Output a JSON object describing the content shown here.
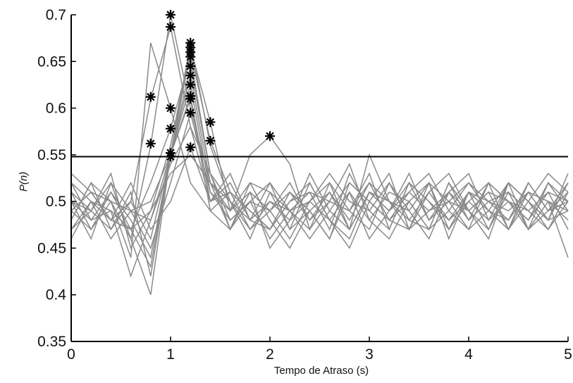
{
  "chart_data": {
    "type": "line",
    "xlabel": "Tempo de Atraso (s)",
    "ylabel": "P(n)",
    "xlim": [
      0,
      5
    ],
    "ylim": [
      0.35,
      0.7
    ],
    "x_ticks": [
      "0",
      "1",
      "2",
      "3",
      "4",
      "5"
    ],
    "y_ticks": [
      "0.35",
      "0.4",
      "0.45",
      "0.5",
      "0.55",
      "0.6",
      "0.65",
      "0.7"
    ],
    "grid": false,
    "threshold": 0.548,
    "colors": {
      "series": "#8a8a8a",
      "threshold": "#000000",
      "marker": "#000000",
      "axis": "#000000"
    },
    "x": [
      0,
      0.2,
      0.4,
      0.6,
      0.8,
      1.0,
      1.2,
      1.4,
      1.6,
      1.8,
      2.0,
      2.2,
      2.4,
      2.6,
      2.8,
      3.0,
      3.2,
      3.4,
      3.6,
      3.8,
      4.0,
      4.2,
      4.4,
      4.6,
      4.8,
      5.0
    ],
    "series": [
      {
        "values": [
          0.5,
          0.49,
          0.52,
          0.46,
          0.56,
          0.7,
          0.6,
          0.52,
          0.47,
          0.51,
          0.49,
          0.46,
          0.5,
          0.52,
          0.47,
          0.51,
          0.49,
          0.53,
          0.48,
          0.5,
          0.52,
          0.49,
          0.47,
          0.51,
          0.5,
          0.49
        ]
      },
      {
        "values": [
          0.48,
          0.52,
          0.47,
          0.5,
          0.61,
          0.687,
          0.58,
          0.5,
          0.53,
          0.48,
          0.47,
          0.51,
          0.49,
          0.46,
          0.52,
          0.5,
          0.48,
          0.51,
          0.53,
          0.49,
          0.47,
          0.52,
          0.5,
          0.48,
          0.51,
          0.5
        ]
      },
      {
        "values": [
          0.51,
          0.47,
          0.5,
          0.44,
          0.67,
          0.6,
          0.52,
          0.49,
          0.51,
          0.47,
          0.5,
          0.48,
          0.53,
          0.49,
          0.47,
          0.55,
          0.5,
          0.47,
          0.52,
          0.5,
          0.49,
          0.46,
          0.52,
          0.5,
          0.48,
          0.53
        ]
      },
      {
        "values": [
          0.49,
          0.51,
          0.48,
          0.47,
          0.52,
          0.578,
          0.655,
          0.53,
          0.48,
          0.5,
          0.46,
          0.49,
          0.51,
          0.5,
          0.54,
          0.48,
          0.46,
          0.5,
          0.52,
          0.47,
          0.51,
          0.5,
          0.48,
          0.52,
          0.49,
          0.51
        ]
      },
      {
        "values": [
          0.52,
          0.5,
          0.46,
          0.49,
          0.5,
          0.55,
          0.67,
          0.56,
          0.5,
          0.46,
          0.51,
          0.49,
          0.47,
          0.52,
          0.49,
          0.47,
          0.52,
          0.49,
          0.46,
          0.51,
          0.53,
          0.48,
          0.5,
          0.47,
          0.52,
          0.49
        ]
      },
      {
        "values": [
          0.47,
          0.49,
          0.53,
          0.45,
          0.49,
          0.56,
          0.665,
          0.585,
          0.49,
          0.52,
          0.48,
          0.45,
          0.49,
          0.51,
          0.48,
          0.52,
          0.5,
          0.48,
          0.51,
          0.53,
          0.49,
          0.51,
          0.47,
          0.5,
          0.53,
          0.51
        ]
      },
      {
        "values": [
          0.5,
          0.48,
          0.49,
          0.42,
          0.48,
          0.55,
          0.66,
          0.565,
          0.51,
          0.49,
          0.47,
          0.5,
          0.52,
          0.48,
          0.45,
          0.5,
          0.53,
          0.47,
          0.49,
          0.51,
          0.48,
          0.52,
          0.5,
          0.49,
          0.47,
          0.5
        ]
      },
      {
        "values": [
          0.53,
          0.51,
          0.48,
          0.5,
          0.46,
          0.55,
          0.645,
          0.53,
          0.47,
          0.5,
          0.52,
          0.47,
          0.49,
          0.46,
          0.51,
          0.48,
          0.51,
          0.5,
          0.47,
          0.49,
          0.52,
          0.5,
          0.49,
          0.51,
          0.48,
          0.52
        ]
      },
      {
        "values": [
          0.49,
          0.47,
          0.51,
          0.48,
          0.44,
          0.55,
          0.635,
          0.52,
          0.5,
          0.47,
          0.49,
          0.52,
          0.48,
          0.5,
          0.49,
          0.53,
          0.47,
          0.52,
          0.5,
          0.47,
          0.5,
          0.48,
          0.52,
          0.47,
          0.5,
          0.48
        ]
      },
      {
        "values": [
          0.46,
          0.5,
          0.49,
          0.47,
          0.43,
          0.55,
          0.625,
          0.51,
          0.49,
          0.51,
          0.45,
          0.48,
          0.5,
          0.53,
          0.5,
          0.49,
          0.52,
          0.48,
          0.47,
          0.52,
          0.49,
          0.47,
          0.51,
          0.49,
          0.51,
          0.47
        ]
      },
      {
        "values": [
          0.51,
          0.49,
          0.47,
          0.51,
          0.42,
          0.55,
          0.613,
          0.5,
          0.52,
          0.48,
          0.5,
          0.49,
          0.46,
          0.49,
          0.52,
          0.5,
          0.48,
          0.47,
          0.51,
          0.48,
          0.5,
          0.52,
          0.47,
          0.52,
          0.49,
          0.5
        ]
      },
      {
        "values": [
          0.48,
          0.52,
          0.5,
          0.46,
          0.4,
          0.55,
          0.61,
          0.49,
          0.47,
          0.52,
          0.51,
          0.47,
          0.52,
          0.48,
          0.51,
          0.46,
          0.49,
          0.51,
          0.49,
          0.5,
          0.47,
          0.49,
          0.52,
          0.5,
          0.47,
          0.51
        ]
      },
      {
        "values": [
          0.5,
          0.46,
          0.52,
          0.49,
          0.45,
          0.52,
          0.595,
          0.51,
          0.48,
          0.5,
          0.49,
          0.51,
          0.48,
          0.51,
          0.47,
          0.51,
          0.5,
          0.49,
          0.52,
          0.46,
          0.51,
          0.49,
          0.48,
          0.51,
          0.5,
          0.44
        ]
      },
      {
        "values": [
          0.47,
          0.5,
          0.48,
          0.52,
          0.47,
          0.5,
          0.558,
          0.5,
          0.51,
          0.49,
          0.47,
          0.5,
          0.51,
          0.47,
          0.53,
          0.49,
          0.47,
          0.52,
          0.48,
          0.51,
          0.49,
          0.51,
          0.5,
          0.48,
          0.52,
          0.5
        ]
      },
      {
        "values": [
          0.52,
          0.48,
          0.51,
          0.47,
          0.49,
          0.53,
          0.55,
          0.52,
          0.49,
          0.55,
          0.57,
          0.54,
          0.47,
          0.5,
          0.49,
          0.52,
          0.48,
          0.5,
          0.47,
          0.52,
          0.48,
          0.5,
          0.51,
          0.47,
          0.49,
          0.52
        ]
      },
      {
        "values": [
          0.49,
          0.51,
          0.5,
          0.49,
          0.48,
          0.54,
          0.58,
          0.53,
          0.5,
          0.48,
          0.52,
          0.49,
          0.5,
          0.48,
          0.46,
          0.51,
          0.49,
          0.52,
          0.5,
          0.48,
          0.51,
          0.47,
          0.52,
          0.5,
          0.48,
          0.49
        ]
      }
    ],
    "markers": [
      {
        "x": 0.8,
        "y": 0.612
      },
      {
        "x": 0.8,
        "y": 0.562
      },
      {
        "x": 1.0,
        "y": 0.7
      },
      {
        "x": 1.0,
        "y": 0.687
      },
      {
        "x": 1.0,
        "y": 0.6
      },
      {
        "x": 1.0,
        "y": 0.578
      },
      {
        "x": 1.0,
        "y": 0.552
      },
      {
        "x": 1.0,
        "y": 0.548
      },
      {
        "x": 1.2,
        "y": 0.67
      },
      {
        "x": 1.2,
        "y": 0.665
      },
      {
        "x": 1.2,
        "y": 0.66
      },
      {
        "x": 1.2,
        "y": 0.655
      },
      {
        "x": 1.2,
        "y": 0.645
      },
      {
        "x": 1.2,
        "y": 0.635
      },
      {
        "x": 1.2,
        "y": 0.625
      },
      {
        "x": 1.2,
        "y": 0.613
      },
      {
        "x": 1.2,
        "y": 0.61
      },
      {
        "x": 1.2,
        "y": 0.595
      },
      {
        "x": 1.2,
        "y": 0.558
      },
      {
        "x": 1.4,
        "y": 0.585
      },
      {
        "x": 1.4,
        "y": 0.565
      },
      {
        "x": 2.0,
        "y": 0.57
      }
    ]
  }
}
